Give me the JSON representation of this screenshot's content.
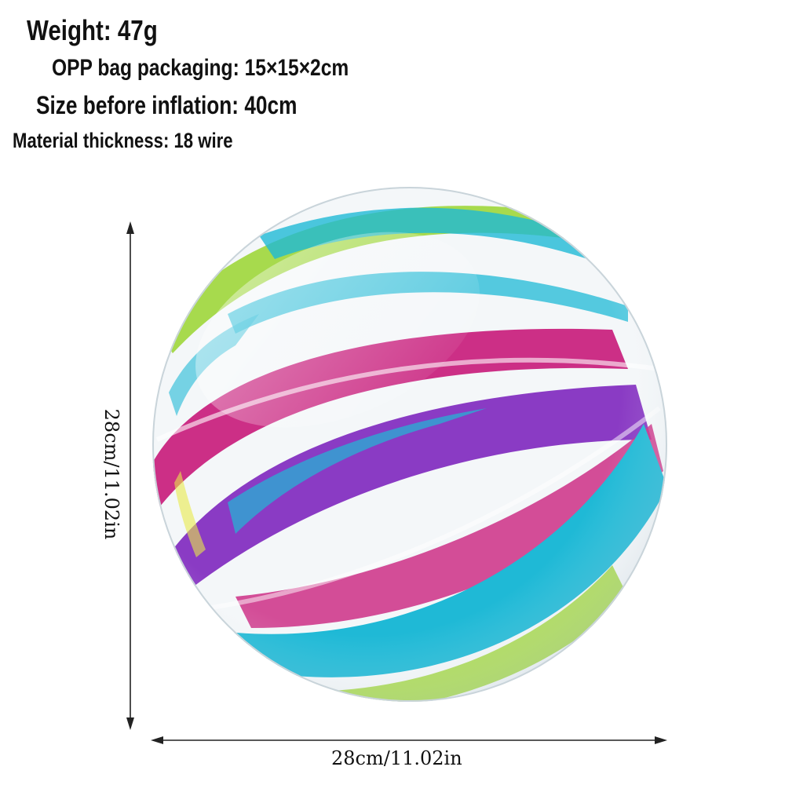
{
  "specs": {
    "weight": "Weight: 47g",
    "packaging": "OPP bag packaging: 15×15×2cm",
    "size_before_inflation": "Size before inflation: 40cm",
    "material_thickness": "Material thickness: 18 wire"
  },
  "dimensions": {
    "height_label": "28cm/11.02in",
    "width_label": "28cm/11.02in"
  },
  "colors": {
    "magenta": "#cc2f86",
    "purple": "#8a3bc4",
    "cyan": "#1fb9d6",
    "lime": "#9fd63a",
    "yellow": "#e8ea4a"
  }
}
